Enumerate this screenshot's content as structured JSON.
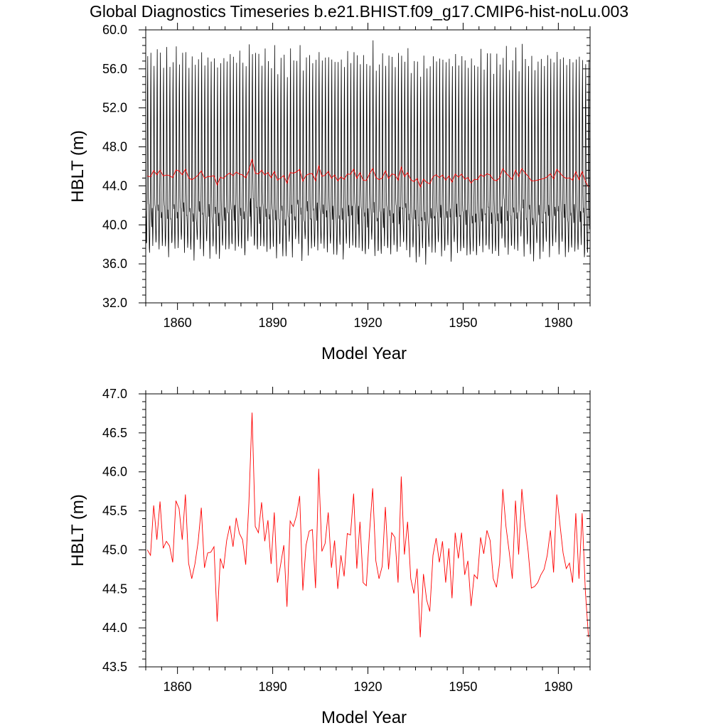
{
  "title": "Global Diagnostics Timeseries b.e21.BHIST.f09_g17.CMIP6-hist-noLu.003",
  "colors": {
    "monthly": "#000000",
    "annual": "#ff0000"
  },
  "chart_data": [
    {
      "type": "line",
      "title": "",
      "xlabel": "Model Year",
      "ylabel": "HBLT (m)",
      "xlim": [
        1850,
        1990
      ],
      "ylim": [
        32.0,
        60.0
      ],
      "xticks": [
        1860,
        1890,
        1920,
        1950,
        1980
      ],
      "xtick_labels": [
        "1860",
        "1890",
        "1920",
        "1950",
        "1980"
      ],
      "yticks": [
        32.0,
        36.0,
        40.0,
        44.0,
        48.0,
        52.0,
        56.0,
        60.0
      ],
      "ytick_labels": [
        "32.0",
        "36.0",
        "40.0",
        "44.0",
        "48.0",
        "52.0",
        "56.0",
        "60.0"
      ],
      "grid": false,
      "monthly_series": {
        "x_start": 1850.0417,
        "x_step": 0.0833333,
        "monthly_cycle_base": [
          40.6,
          38.7,
          37.4,
          38.6,
          41.6,
          44.8,
          53.3,
          56.9,
          48.9,
          42.2,
          40.9,
          41.3
        ],
        "annual_offsets": [
          0.4,
          -0.1,
          0.6,
          0.3,
          0.7,
          0.1,
          0.2,
          0.0,
          -0.1,
          0.6,
          0.5,
          0.2,
          0.7,
          -0.2,
          -0.3,
          -0.1,
          0.1,
          0.5,
          -0.2,
          0.0,
          0.0,
          0.1,
          -0.8,
          -0.1,
          -0.2,
          0.3,
          0.4,
          0.1,
          0.4,
          0.2,
          0.1,
          -0.3,
          0.7,
          1.6,
          0.3,
          0.2,
          0.5,
          0.1,
          0.3,
          -0.3,
          0.4,
          -0.4,
          -0.1,
          0.0,
          -0.7,
          0.3,
          0.2,
          0.4,
          0.7,
          -0.4,
          0.1,
          0.2,
          0.2,
          -0.4,
          1.0,
          0.0,
          0.1,
          0.5,
          -0.2,
          0.1,
          -0.4,
          0.0,
          -0.3,
          0.3,
          0.2,
          0.8,
          -0.1,
          0.5,
          -0.2,
          -0.4,
          0.2,
          0.9,
          -0.3,
          -0.4,
          -0.2,
          0.6,
          -0.3,
          0.2,
          0.2,
          -0.4,
          1.1,
          0.0,
          0.4,
          -0.4,
          -0.6,
          -0.3,
          -1.1,
          -0.2,
          -0.5,
          -0.6,
          0.1,
          0.2,
          -0.1,
          0.2,
          -0.3,
          0.1,
          -0.4,
          0.2,
          -0.1,
          0.2,
          -0.3,
          -0.1,
          -0.6,
          -0.2,
          -0.3,
          0.2,
          0.0,
          0.3,
          0.2,
          -0.3,
          -0.4,
          -0.1,
          0.8,
          0.3,
          0.0,
          -0.3,
          0.7,
          -0.1,
          0.8,
          0.3,
          -0.1,
          -0.4,
          -0.4,
          -0.3,
          -0.2,
          -0.1,
          0.1,
          0.3,
          -0.2,
          0.7,
          0.3,
          0.0,
          -0.2,
          -0.1,
          -0.3,
          0.5,
          -0.3,
          0.5,
          -0.4,
          -0.6
        ]
      },
      "series": [
        {
          "values_ref": "monthly",
          "color": "#000000"
        },
        {
          "values_ref": "annual",
          "color": "#ff0000"
        }
      ]
    },
    {
      "type": "line",
      "title": "",
      "xlabel": "Model Year",
      "ylabel": "HBLT (m)",
      "xlim": [
        1850,
        1990
      ],
      "ylim": [
        43.5,
        47.0
      ],
      "xticks": [
        1860,
        1890,
        1920,
        1950,
        1980
      ],
      "xtick_labels": [
        "1860",
        "1890",
        "1920",
        "1950",
        "1980"
      ],
      "yticks": [
        43.5,
        44.0,
        44.5,
        45.0,
        45.5,
        46.0,
        46.5,
        47.0
      ],
      "ytick_labels": [
        "43.5",
        "44.0",
        "44.5",
        "45.0",
        "45.5",
        "46.0",
        "46.5",
        "47.0"
      ],
      "grid": false,
      "annual_series": {
        "x_start": 1850.5,
        "x_step": 1,
        "values": [
          45.0,
          44.93,
          45.57,
          45.13,
          45.62,
          45.02,
          45.11,
          45.05,
          44.84,
          45.63,
          45.53,
          45.13,
          45.71,
          44.83,
          44.63,
          44.82,
          45.1,
          45.54,
          44.77,
          44.96,
          44.97,
          45.04,
          44.08,
          44.89,
          44.76,
          45.12,
          45.31,
          45.04,
          45.41,
          45.21,
          45.13,
          44.81,
          45.6,
          46.76,
          45.3,
          45.22,
          45.61,
          45.11,
          45.38,
          44.82,
          45.48,
          44.58,
          44.81,
          45.06,
          44.27,
          45.37,
          45.3,
          45.44,
          45.69,
          44.48,
          45.06,
          45.24,
          45.26,
          44.51,
          46.04,
          44.98,
          45.08,
          45.48,
          44.77,
          45.12,
          44.5,
          44.93,
          44.66,
          45.21,
          45.19,
          45.72,
          44.76,
          45.36,
          44.58,
          44.54,
          45.22,
          45.79,
          44.86,
          44.63,
          44.79,
          45.55,
          44.75,
          45.22,
          45.16,
          44.58,
          45.94,
          44.94,
          45.36,
          44.63,
          44.44,
          44.76,
          43.88,
          44.69,
          44.36,
          44.21,
          44.93,
          45.15,
          44.84,
          45.11,
          44.58,
          45.02,
          44.38,
          45.22,
          44.89,
          45.22,
          44.68,
          44.86,
          44.28,
          44.68,
          44.63,
          45.16,
          44.95,
          45.25,
          45.12,
          44.63,
          44.52,
          44.83,
          45.78,
          45.3,
          44.98,
          44.63,
          45.63,
          44.94,
          45.78,
          45.33,
          44.98,
          44.51,
          44.53,
          44.58,
          44.68,
          44.75,
          44.93,
          45.25,
          44.71,
          45.71,
          45.33,
          44.96,
          44.76,
          44.83,
          44.58,
          45.47,
          44.63,
          45.47,
          44.48,
          43.88
        ]
      },
      "series": [
        {
          "values_ref": "annual",
          "color": "#ff0000"
        }
      ]
    }
  ]
}
